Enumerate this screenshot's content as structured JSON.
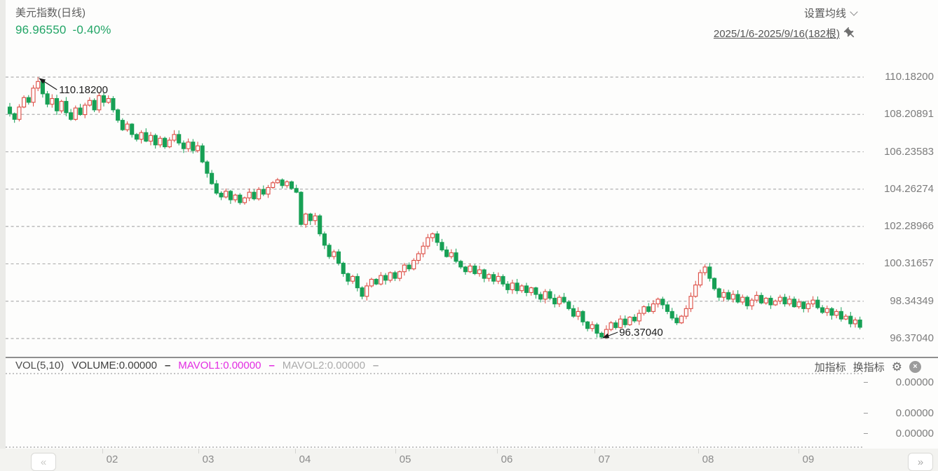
{
  "header": {
    "title": "美元指数(日线)",
    "price": "96.96550",
    "change": "-0.40%",
    "ma_settings_label": "设置均线",
    "date_range": "2025/1/6-2025/9/16(182根)"
  },
  "chart_data": {
    "type": "candlestick",
    "title": "美元指数(日线)",
    "date_range": "2025/1/6-2025/9/16",
    "bar_count": 182,
    "high": 110.182,
    "low": 96.3704,
    "high_label": "110.18200",
    "low_label": "96.37040",
    "high_index": 6,
    "low_index": 126,
    "up_color": "#dc4a41",
    "down_color": "#17a055",
    "grid": "horizontal-dashed",
    "y_ticks": [
      "110.18200",
      "108.20891",
      "106.23583",
      "104.26274",
      "102.28966",
      "100.31657",
      "98.34349",
      "96.37040"
    ],
    "x_ticks": [
      "02",
      "03",
      "04",
      "05",
      "06",
      "07",
      "08",
      "09"
    ],
    "first_open": 108.6,
    "closes": [
      108.25,
      107.95,
      108.6,
      109.1,
      108.85,
      109.6,
      109.95,
      109.3,
      108.75,
      109.05,
      108.4,
      108.9,
      108.3,
      107.95,
      108.55,
      108.2,
      108.7,
      108.95,
      108.45,
      109.2,
      108.85,
      109.05,
      108.45,
      107.9,
      107.4,
      107.7,
      107.15,
      106.9,
      107.25,
      106.8,
      107.1,
      106.6,
      106.95,
      106.5,
      106.85,
      107.15,
      106.7,
      106.4,
      106.75,
      106.3,
      106.55,
      105.7,
      105.1,
      104.55,
      104.05,
      103.85,
      104.15,
      103.7,
      103.95,
      103.55,
      103.8,
      104.1,
      103.75,
      104.25,
      104.0,
      104.35,
      104.6,
      104.75,
      104.45,
      104.65,
      104.3,
      104.1,
      102.4,
      102.95,
      102.6,
      102.85,
      101.9,
      101.3,
      100.7,
      100.95,
      100.35,
      99.8,
      99.4,
      99.65,
      99.05,
      98.6,
      99.15,
      99.5,
      99.25,
      99.7,
      99.45,
      99.85,
      99.55,
      99.9,
      100.25,
      100.05,
      100.5,
      100.85,
      101.25,
      101.7,
      101.9,
      101.45,
      101.05,
      100.7,
      100.9,
      100.45,
      100.15,
      99.9,
      100.2,
      99.8,
      100.0,
      99.55,
      99.75,
      99.4,
      99.65,
      99.25,
      98.95,
      99.3,
      98.9,
      99.15,
      98.8,
      99.05,
      98.7,
      98.45,
      98.85,
      98.5,
      98.2,
      98.55,
      98.3,
      97.95,
      97.55,
      97.8,
      97.25,
      96.9,
      97.1,
      96.65,
      96.45,
      96.85,
      97.2,
      96.95,
      97.4,
      97.1,
      97.5,
      97.3,
      97.7,
      98.05,
      97.8,
      98.2,
      98.45,
      98.15,
      97.8,
      97.45,
      97.2,
      97.55,
      97.95,
      98.6,
      99.2,
      99.85,
      100.15,
      99.55,
      99.0,
      98.55,
      98.8,
      98.45,
      98.7,
      98.3,
      98.55,
      98.1,
      98.4,
      98.65,
      98.25,
      98.5,
      98.15,
      98.35,
      98.55,
      98.2,
      98.45,
      98.05,
      98.3,
      97.95,
      98.2,
      98.4,
      98.0,
      97.75,
      97.95,
      97.6,
      97.8,
      97.4,
      97.55,
      97.15,
      97.35,
      96.965
    ]
  },
  "volume_panel": {
    "indicator": "VOL(5,10)",
    "volume": "VOLUME:0.00000",
    "mavol1": "MAVOL1:0.00000",
    "mavol2": "MAVOL2:0.00000",
    "dash": "–",
    "mavol1_color": "#e22ce2",
    "add_indicator": "加指标",
    "switch_indicator": "换指标",
    "y_ticks": [
      "0.00000",
      "0.00000",
      "0.00000"
    ]
  },
  "pager": {
    "prev": "«",
    "next": "»"
  }
}
